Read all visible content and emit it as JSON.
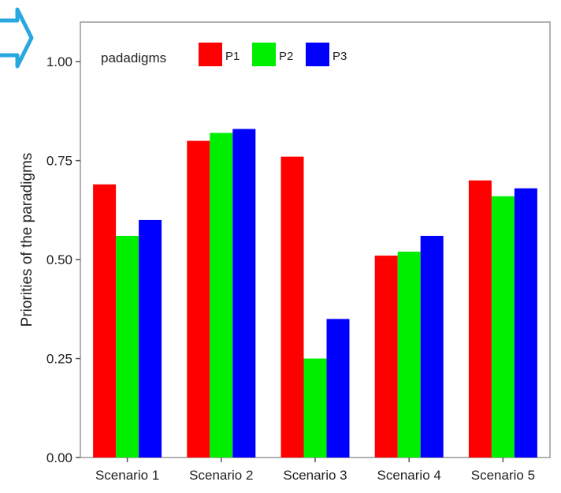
{
  "chart_data": {
    "type": "bar",
    "title": "",
    "xlabel": "",
    "ylabel": "Priorities of the paradigms",
    "ylim": [
      0,
      1.1
    ],
    "yticks": [
      0.0,
      0.25,
      0.5,
      0.75,
      1.0
    ],
    "ytick_labels": [
      "0.00",
      "0.25",
      "0.50",
      "0.75",
      "1.00"
    ],
    "categories": [
      "Scenario 1",
      "Scenario 2",
      "Scenario 3",
      "Scenario 4",
      "Scenario 5"
    ],
    "series": [
      {
        "name": "P1",
        "color": "#ff0000",
        "values": [
          0.69,
          0.8,
          0.76,
          0.51,
          0.7
        ]
      },
      {
        "name": "P2",
        "color": "#00ee00",
        "values": [
          0.56,
          0.82,
          0.25,
          0.52,
          0.66
        ]
      },
      {
        "name": "P3",
        "color": "#0000ff",
        "values": [
          0.6,
          0.83,
          0.35,
          0.56,
          0.68
        ]
      }
    ],
    "legend": {
      "title": "padadigms",
      "placement": "top-left, inside"
    },
    "grid": false
  },
  "decoration": {
    "arrow_icon_color": "#29a8e0"
  }
}
